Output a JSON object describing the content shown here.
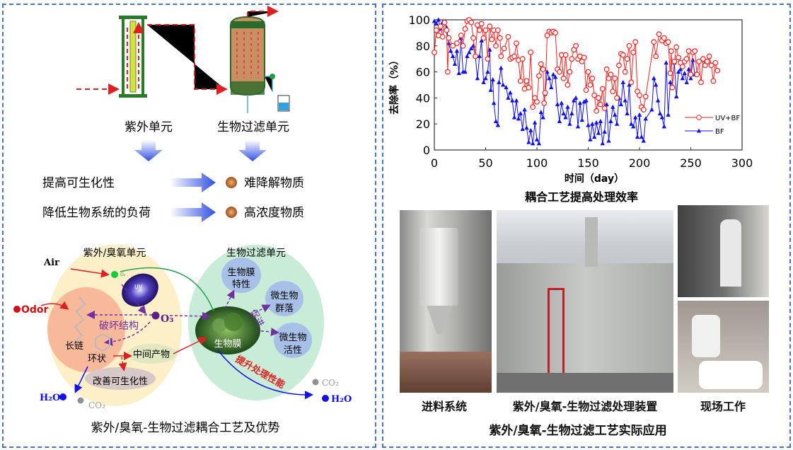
{
  "left_panel": {
    "uv_unit_label": "紫外单元",
    "bio_unit_label": "生物过滤单元",
    "row1_left": "提高可生化性",
    "row1_right": "难降解物质",
    "row2_left": "降低生物系统的负荷",
    "row2_right": "高浓度物质",
    "diagram": {
      "uv_ozone_unit": "紫外/臭氧单元",
      "bio_filter_unit": "生物过滤单元",
      "air": "Air",
      "o2": "O₂",
      "uv": "UV",
      "odor": "Odor",
      "o3": "O₃",
      "destroy_structure": "破坏结构",
      "long_chain": "长链",
      "ring": "环状",
      "intermediate": "中间产物",
      "improve_biodegradability": "改善可生化性",
      "h2o_left": "H₂O",
      "co2_left": "CO₂",
      "biofilm_props_1": "生物膜",
      "biofilm_props_2": "特性",
      "microbe_community_1": "微生物",
      "microbe_community_2": "群落",
      "promote": "促进",
      "microbe_activity_1": "微生物",
      "microbe_activity_2": "活性",
      "biofilm": "生物膜",
      "improve_performance": "提升处理性能",
      "co2_right": "CO₂",
      "h2o_right": "H₂O"
    },
    "caption": "紫外/臭氧-生物过滤耦合工艺及优势"
  },
  "right_panel": {
    "chart_caption": "耦合工艺提高处理效率",
    "photo_labels": [
      "进料系统",
      "紫外/臭氧-生物过滤处理装置",
      "现场工作"
    ],
    "caption": "紫外/臭氧-生物过滤工艺实际应用"
  },
  "colors": {
    "uv_bf": "#ff2020",
    "bf": "#1010ee",
    "border": "#4a72c4"
  },
  "chart_data": {
    "type": "line",
    "xlabel": "时间（day）",
    "ylabel": "去除率（%）",
    "xlim": [
      0,
      300
    ],
    "ylim": [
      0,
      100
    ],
    "xticks": [
      0,
      50,
      100,
      150,
      200,
      250,
      300
    ],
    "yticks": [
      0,
      20,
      40,
      60,
      80,
      100
    ],
    "legend_position": "right",
    "grid": false,
    "series": [
      {
        "name": "UV+BF",
        "marker": "open-circle",
        "color": "#ff2020",
        "x": [
          0,
          2,
          4,
          6,
          8,
          10,
          12,
          13,
          14,
          18,
          22,
          26,
          28,
          30,
          32,
          34,
          36,
          38,
          40,
          42,
          44,
          46,
          48,
          50,
          52,
          54,
          56,
          58,
          60,
          62,
          64,
          65,
          68,
          72,
          74,
          76,
          78,
          80,
          82,
          84,
          86,
          88,
          90,
          92,
          94,
          96,
          98,
          100,
          102,
          104,
          106,
          107,
          108,
          110,
          112,
          114,
          116,
          118,
          120,
          122,
          124,
          126,
          128,
          130,
          132,
          134,
          136,
          138,
          140,
          142,
          144,
          146,
          148,
          150,
          152,
          154,
          156,
          158,
          160,
          162,
          164,
          166,
          168,
          170,
          172,
          174,
          176,
          178,
          180,
          182,
          184,
          186,
          188,
          190,
          192,
          194,
          196,
          198,
          200,
          202,
          204,
          206,
          214,
          216,
          219,
          222,
          224,
          226,
          228,
          230,
          231,
          232,
          234,
          236,
          238,
          240,
          242,
          244,
          246,
          248,
          250,
          252,
          254,
          256,
          258,
          260,
          262,
          264,
          266,
          268,
          270,
          272,
          274,
          276
        ],
        "y": [
          75,
          92,
          88,
          95,
          87,
          98,
          92,
          60,
          86,
          80,
          82,
          88,
          80,
          93,
          99,
          100,
          98,
          86,
          72,
          96,
          92,
          97,
          86,
          92,
          70,
          95,
          85,
          92,
          80,
          92,
          86,
          72,
          78,
          87,
          70,
          71,
          72,
          82,
          69,
          53,
          70,
          47,
          53,
          48,
          75,
          33,
          40,
          37,
          57,
          66,
          62,
          36,
          44,
          88,
          91,
          90,
          91,
          90,
          62,
          60,
          73,
          55,
          73,
          50,
          60,
          70,
          77,
          80,
          70,
          72,
          68,
          71,
          46,
          60,
          50,
          55,
          42,
          30,
          40,
          35,
          47,
          32,
          62,
          55,
          58,
          45,
          55,
          40,
          65,
          74,
          73,
          60,
          70,
          80,
          52,
          75,
          83,
          45,
          42,
          33,
          31,
          41,
          83,
          72,
          89,
          84,
          86,
          82,
          83,
          59,
          76,
          48,
          68,
          79,
          71,
          67,
          64,
          68,
          70,
          76,
          58,
          75,
          76,
          58,
          68,
          52,
          70,
          65,
          68,
          72,
          65,
          53,
          67,
          61
        ]
      },
      {
        "name": "BF",
        "marker": "filled-triangle",
        "color": "#1010ee",
        "x": [
          0,
          2,
          4,
          6,
          8,
          10,
          12,
          14,
          16,
          18,
          20,
          22,
          24,
          26,
          28,
          30,
          32,
          34,
          36,
          38,
          40,
          42,
          44,
          46,
          48,
          50,
          52,
          54,
          55,
          57,
          58,
          60,
          62,
          63,
          65,
          67,
          70,
          72,
          74,
          76,
          78,
          80,
          82,
          84,
          86,
          88,
          90,
          92,
          94,
          96,
          98,
          100,
          102,
          104,
          106,
          108,
          110,
          112,
          114,
          116,
          118,
          120,
          122,
          124,
          126,
          128,
          130,
          132,
          134,
          136,
          138,
          140,
          142,
          144,
          146,
          148,
          150,
          152,
          154,
          156,
          158,
          160,
          162,
          164,
          166,
          168,
          170,
          172,
          174,
          176,
          178,
          180,
          182,
          184,
          186,
          188,
          190,
          192,
          194,
          196,
          198,
          200,
          202,
          204,
          206,
          212,
          214,
          216,
          218,
          220,
          222,
          224,
          226,
          228,
          230,
          232,
          234,
          236,
          238,
          240,
          242,
          244,
          246,
          248,
          250,
          252,
          254
        ],
        "y": [
          99,
          97,
          100,
          93,
          98,
          98,
          94,
          82,
          76,
          72,
          66,
          76,
          59,
          86,
          60,
          60,
          72,
          75,
          78,
          80,
          72,
          55,
          72,
          84,
          52,
          55,
          60,
          77,
          46,
          54,
          36,
          22,
          19,
          52,
          63,
          50,
          48,
          40,
          44,
          38,
          25,
          38,
          24,
          28,
          16,
          31,
          17,
          6,
          15,
          5,
          21,
          8,
          5,
          29,
          25,
          43,
          60,
          55,
          48,
          58,
          56,
          35,
          22,
          36,
          28,
          25,
          33,
          20,
          28,
          38,
          40,
          18,
          36,
          23,
          37,
          38,
          19,
          8,
          20,
          10,
          21,
          13,
          22,
          5,
          14,
          35,
          7,
          22,
          33,
          27,
          20,
          40,
          35,
          52,
          38,
          28,
          50,
          20,
          18,
          25,
          10,
          27,
          10,
          7,
          24,
          31,
          55,
          50,
          38,
          28,
          25,
          18,
          67,
          27,
          52,
          48,
          67,
          41,
          60,
          62,
          55,
          59,
          52,
          62,
          55,
          69,
          58
        ]
      }
    ]
  }
}
